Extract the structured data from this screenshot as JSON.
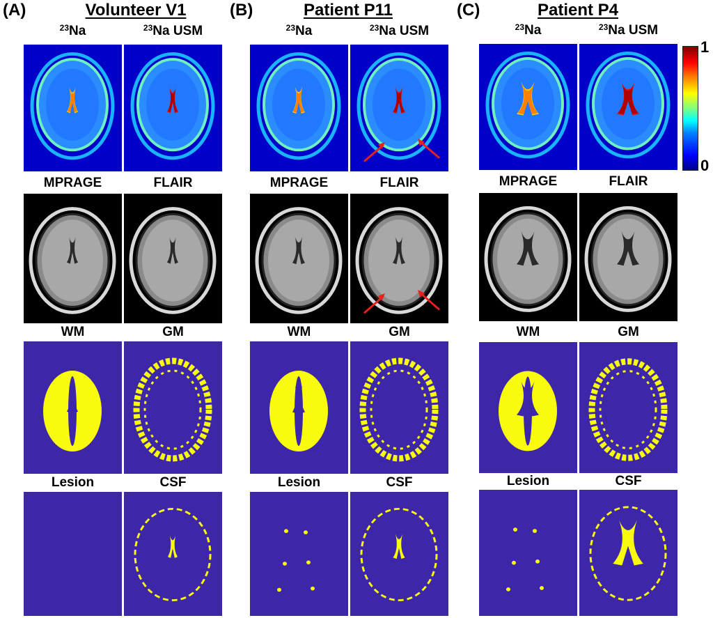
{
  "colors": {
    "na_bg": "#0000c8",
    "mask_bg": "#3e26a8",
    "mask_fg": "#f9fb0e",
    "mri_bg": "#000000",
    "arrow": "#e8201e"
  },
  "panels": [
    {
      "letter": "(A)",
      "title": "Volunteer V1",
      "sup": "23",
      "na": "Na",
      "na_usm": "Na USM",
      "mprage": "MPRAGE",
      "flair": "FLAIR",
      "wm": "WM",
      "gm": "GM",
      "lesion": "Lesion",
      "csf": "CSF",
      "lesion_present": false,
      "arrows": false,
      "ventricle_scale": 0.8
    },
    {
      "letter": "(B)",
      "title": "Patient P11",
      "sup": "23",
      "na": "Na",
      "na_usm": "Na USM",
      "mprage": "MPRAGE",
      "flair": "FLAIR",
      "wm": "WM",
      "gm": "GM",
      "lesion": "Lesion",
      "csf": "CSF",
      "lesion_present": true,
      "arrows": true,
      "ventricle_scale": 0.9
    },
    {
      "letter": "(C)",
      "title": "Patient P4",
      "sup": "23",
      "na": "Na",
      "na_usm": "Na USM",
      "mprage": "MPRAGE",
      "flair": "FLAIR",
      "wm": "WM",
      "gm": "GM",
      "lesion": "Lesion",
      "csf": "CSF",
      "lesion_present": true,
      "arrows": false,
      "ventricle_scale": 1.6
    }
  ],
  "colorbar": {
    "colormap": "jet",
    "max_label": "1",
    "min_label": "0"
  }
}
